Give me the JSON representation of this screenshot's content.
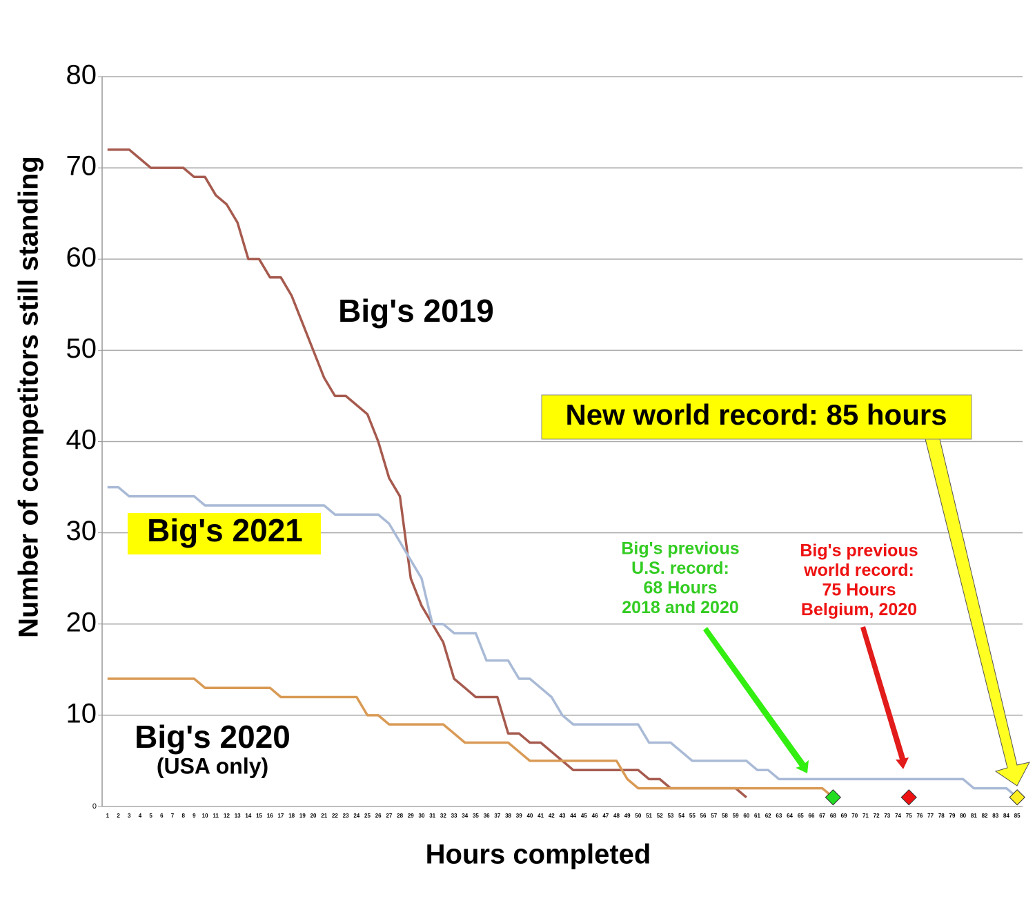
{
  "chart_data": {
    "type": "line",
    "x_label": "Hours completed",
    "y_label": "Number of competitors still standing",
    "categories": [
      1,
      2,
      3,
      4,
      5,
      6,
      7,
      8,
      9,
      10,
      11,
      12,
      13,
      14,
      15,
      16,
      17,
      18,
      19,
      20,
      21,
      22,
      23,
      24,
      25,
      26,
      27,
      28,
      29,
      30,
      31,
      32,
      33,
      34,
      35,
      36,
      37,
      38,
      39,
      40,
      41,
      42,
      43,
      44,
      45,
      46,
      47,
      48,
      49,
      50,
      51,
      52,
      53,
      54,
      55,
      56,
      57,
      58,
      59,
      60,
      61,
      62,
      63,
      64,
      65,
      66,
      67,
      68,
      69,
      70,
      71,
      72,
      73,
      74,
      75,
      76,
      77,
      78,
      79,
      80,
      81,
      82,
      83,
      84,
      85
    ],
    "ylim": [
      0,
      80
    ],
    "yticks": [
      0,
      10,
      20,
      30,
      40,
      50,
      60,
      70,
      80
    ],
    "grid": true,
    "series": [
      {
        "name": "Big's 2019",
        "color": "#a65a4e",
        "values": [
          72,
          72,
          72,
          71,
          70,
          70,
          70,
          70,
          69,
          69,
          67,
          66,
          64,
          60,
          60,
          58,
          58,
          56,
          53,
          50,
          47,
          45,
          45,
          44,
          43,
          40,
          36,
          34,
          25,
          22,
          20,
          18,
          14,
          13,
          12,
          12,
          12,
          8,
          8,
          7,
          7,
          6,
          5,
          4,
          4,
          4,
          4,
          4,
          4,
          4,
          3,
          3,
          2,
          2,
          2,
          2,
          2,
          2,
          2,
          1,
          null,
          null,
          null,
          null,
          null,
          null,
          null,
          null,
          null,
          null,
          null,
          null,
          null,
          null,
          null,
          null,
          null,
          null,
          null,
          null,
          null,
          null,
          null,
          null,
          null
        ]
      },
      {
        "name": "Big's 2021",
        "color": "#a9bad6",
        "values": [
          35,
          35,
          34,
          34,
          34,
          34,
          34,
          34,
          34,
          33,
          33,
          33,
          33,
          33,
          33,
          33,
          33,
          33,
          33,
          33,
          33,
          32,
          32,
          32,
          32,
          32,
          31,
          29,
          27,
          25,
          20,
          20,
          19,
          19,
          19,
          16,
          16,
          16,
          14,
          14,
          13,
          12,
          10,
          9,
          9,
          9,
          9,
          9,
          9,
          9,
          7,
          7,
          7,
          6,
          5,
          5,
          5,
          5,
          5,
          5,
          4,
          4,
          3,
          3,
          3,
          3,
          3,
          3,
          3,
          3,
          3,
          3,
          3,
          3,
          3,
          3,
          3,
          3,
          3,
          3,
          2,
          2,
          2,
          2,
          1
        ]
      },
      {
        "name": "Big's 2020",
        "color": "#d99a55",
        "values": [
          14,
          14,
          14,
          14,
          14,
          14,
          14,
          14,
          14,
          13,
          13,
          13,
          13,
          13,
          13,
          13,
          12,
          12,
          12,
          12,
          12,
          12,
          12,
          12,
          10,
          10,
          9,
          9,
          9,
          9,
          9,
          9,
          8,
          7,
          7,
          7,
          7,
          7,
          6,
          5,
          5,
          5,
          5,
          5,
          5,
          5,
          5,
          5,
          3,
          2,
          2,
          2,
          2,
          2,
          2,
          2,
          2,
          2,
          2,
          2,
          2,
          2,
          2,
          2,
          2,
          2,
          2,
          1,
          null,
          null,
          null,
          null,
          null,
          null,
          null,
          null,
          null,
          null,
          null,
          null,
          null,
          null,
          null,
          null,
          null
        ]
      }
    ],
    "markers": [
      {
        "x": 68,
        "y": 1,
        "color": "#22dd22"
      },
      {
        "x": 75,
        "y": 1,
        "color": "#ee1111"
      },
      {
        "x": 85,
        "y": 1,
        "color": "#ffee22"
      }
    ],
    "annotations": {
      "big2019": "Big's 2019",
      "big2021": "Big's 2021",
      "big2020": "Big's 2020",
      "usa_only": "(USA only)",
      "new_record": "New world record: 85 hours",
      "us_record": [
        "Big's previous",
        "U.S. record:",
        "68 Hours",
        "2018 and 2020"
      ],
      "world_record": [
        "Big's previous",
        "world record:",
        "75 Hours",
        "Belgium, 2020"
      ]
    }
  }
}
